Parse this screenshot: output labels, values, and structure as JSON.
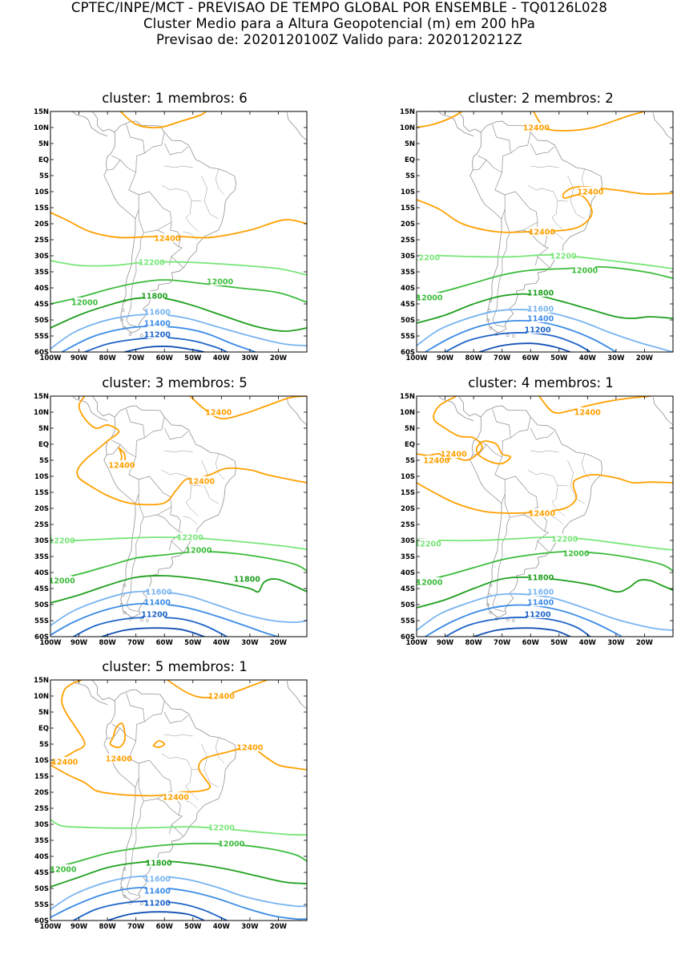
{
  "header": {
    "line1": "CPTEC/INPE/MCT - PREVISAO DE TEMPO GLOBAL POR ENSEMBLE - TQ0126L028",
    "line2": "Cluster Medio para a Altura Geopotencial (m) em 200 hPa",
    "line3": "Previsao de: 2020120100Z    Valido para: 2020120212Z"
  },
  "axes": {
    "lat_labels": [
      "15N",
      "10N",
      "5N",
      "EQ",
      "5S",
      "10S",
      "15S",
      "20S",
      "25S",
      "30S",
      "35S",
      "40S",
      "45S",
      "50S",
      "55S",
      "60S"
    ],
    "lon_labels": [
      "100W",
      "90W",
      "80W",
      "70W",
      "60W",
      "50W",
      "40W",
      "30W",
      "20W"
    ],
    "lon_range": [
      -100,
      -10
    ],
    "lat_range": [
      -60,
      15
    ]
  },
  "colors": {
    "12400": "#ffa000",
    "12200": "#78e678",
    "12000": "#3cbc3c",
    "11800": "#1fa01f",
    "11600": "#78b4f0",
    "11400": "#3c8ce6",
    "11200": "#1e64c8",
    "11000": "#1450b4",
    "coast": "#909090"
  },
  "panels": [
    {
      "title": "cluster: 1   membros: 6",
      "labels": [
        {
          "t": "12400",
          "c": "12400"
        },
        {
          "t": "12200",
          "c": "12200"
        },
        {
          "t": "12000",
          "c": "12000"
        },
        {
          "t": "12000",
          "c": "12000"
        },
        {
          "t": "11800",
          "c": "11800"
        },
        {
          "t": "11600",
          "c": "11600"
        },
        {
          "t": "11400",
          "c": "11400"
        },
        {
          "t": "11200",
          "c": "11200"
        }
      ]
    },
    {
      "title": "cluster: 2   membros: 2",
      "labels": [
        {
          "t": "12400",
          "c": "12400"
        },
        {
          "t": "12400",
          "c": "12400"
        },
        {
          "t": "12400",
          "c": "12400"
        },
        {
          "t": "12200",
          "c": "12200"
        },
        {
          "t": "12200",
          "c": "12200"
        },
        {
          "t": "12000",
          "c": "12000"
        },
        {
          "t": "12000",
          "c": "12000"
        },
        {
          "t": "11800",
          "c": "11800"
        },
        {
          "t": "11600",
          "c": "11600"
        },
        {
          "t": "11400",
          "c": "11400"
        },
        {
          "t": "11200",
          "c": "11200"
        }
      ]
    },
    {
      "title": "cluster: 3   membros: 5",
      "labels": [
        {
          "t": "12400",
          "c": "12400"
        },
        {
          "t": "12400",
          "c": "12400"
        },
        {
          "t": "12400",
          "c": "12400"
        },
        {
          "t": "12200",
          "c": "12200"
        },
        {
          "t": "12200",
          "c": "12200"
        },
        {
          "t": "12000",
          "c": "12000"
        },
        {
          "t": "12000",
          "c": "12000"
        },
        {
          "t": "11800",
          "c": "11800"
        },
        {
          "t": "11600",
          "c": "11600"
        },
        {
          "t": "11400",
          "c": "11400"
        },
        {
          "t": "11200",
          "c": "11200"
        }
      ]
    },
    {
      "title": "cluster: 4   membros: 1",
      "labels": [
        {
          "t": "12400",
          "c": "12400"
        },
        {
          "t": "12400",
          "c": "12400"
        },
        {
          "t": "12400",
          "c": "12400"
        },
        {
          "t": "12400",
          "c": "12400"
        },
        {
          "t": "12200",
          "c": "12200"
        },
        {
          "t": "12200",
          "c": "12200"
        },
        {
          "t": "12000",
          "c": "12000"
        },
        {
          "t": "12000",
          "c": "12000"
        },
        {
          "t": "11800",
          "c": "11800"
        },
        {
          "t": "11600",
          "c": "11600"
        },
        {
          "t": "11400",
          "c": "11400"
        },
        {
          "t": "11200",
          "c": "11200"
        }
      ]
    },
    {
      "title": "cluster: 5   membros: 1",
      "labels": [
        {
          "t": "12400",
          "c": "12400"
        },
        {
          "t": "12400",
          "c": "12400"
        },
        {
          "t": "12400",
          "c": "12400"
        },
        {
          "t": "12400",
          "c": "12400"
        },
        {
          "t": "12400",
          "c": "12400"
        },
        {
          "t": "12200",
          "c": "12200"
        },
        {
          "t": "12000",
          "c": "12000"
        },
        {
          "t": "12000",
          "c": "12000"
        },
        {
          "t": "11800",
          "c": "11800"
        },
        {
          "t": "11600",
          "c": "11600"
        },
        {
          "t": "11400",
          "c": "11400"
        },
        {
          "t": "11200",
          "c": "11200"
        }
      ]
    }
  ]
}
